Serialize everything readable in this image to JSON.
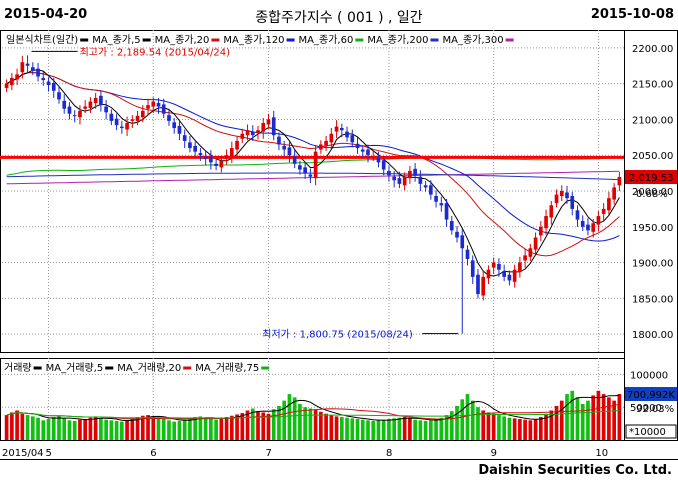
{
  "header": {
    "date_start": "2015-04-20",
    "title": "종합주가지수 ( 001 ) , 일간",
    "date_end": "2015-10-08"
  },
  "footer": {
    "company": "Daishin Securities Co. Ltd."
  },
  "colors": {
    "up": "#e00000",
    "down": "#1c2ad0",
    "ma5": "#000000",
    "ma20": "#d01010",
    "ma120": "#0b1bd0",
    "ma60": "#10b010",
    "ma200": "#2030c0",
    "ma300": "#b020b0",
    "resistance": "#ff0000",
    "vol_up": "#e00000",
    "vol_down": "#10c010"
  },
  "chart_data": [
    {
      "type": "candlestick",
      "name": "price",
      "legend": [
        {
          "label": "일본식차트(일간)",
          "color": "#000000"
        },
        {
          "label": "MA_종가,5",
          "color": "#000000"
        },
        {
          "label": "MA_종가,20",
          "color": "#d01010"
        },
        {
          "label": "MA_종가,120",
          "color": "#0b1bd0"
        },
        {
          "label": "MA_종가,60",
          "color": "#10b010"
        },
        {
          "label": "MA_종가,200",
          "color": "#2030c0"
        },
        {
          "label": "MA_종가,300",
          "color": "#b020b0"
        }
      ],
      "ylim": [
        1775,
        2225
      ],
      "yticks": [
        1800,
        1850,
        1900,
        1950,
        2000,
        2050,
        2100,
        2150,
        2200
      ],
      "xlabels": [
        {
          "label": "2015/04",
          "index": 0
        },
        {
          "label": "5",
          "index": 8
        },
        {
          "label": "6",
          "index": 28
        },
        {
          "label": "7",
          "index": 50
        },
        {
          "label": "8",
          "index": 73
        },
        {
          "label": "9",
          "index": 93
        },
        {
          "label": "10",
          "index": 113
        }
      ],
      "annotations": {
        "high_label": "최고가 : 2,189.54 (2015/04/24)",
        "high_value": 2189.54,
        "high_index": 4,
        "low_label": "최저가 : 1,800.75 (2015/08/24)",
        "low_value": 1800.75,
        "low_index": 87,
        "last_price_label": "2,019.53",
        "last_price": 2019.53,
        "change_label": "0.68%",
        "resistance_level": 2047
      },
      "closes": [
        2150,
        2158,
        2163,
        2180,
        2175,
        2168,
        2160,
        2155,
        2148,
        2140,
        2128,
        2115,
        2108,
        2105,
        2112,
        2118,
        2125,
        2130,
        2120,
        2110,
        2098,
        2092,
        2088,
        2095,
        2100,
        2105,
        2112,
        2120,
        2125,
        2118,
        2108,
        2098,
        2088,
        2080,
        2070,
        2060,
        2055,
        2050,
        2045,
        2040,
        2035,
        2042,
        2050,
        2060,
        2070,
        2080,
        2085,
        2078,
        2085,
        2095,
        2100,
        2078,
        2065,
        2058,
        2050,
        2038,
        2030,
        2025,
        2020,
        2055,
        2065,
        2070,
        2080,
        2090,
        2085,
        2075,
        2068,
        2060,
        2055,
        2050,
        2048,
        2040,
        2030,
        2022,
        2015,
        2010,
        2020,
        2028,
        2022,
        2010,
        2005,
        1995,
        1985,
        1980,
        1960,
        1945,
        1935,
        1920,
        1905,
        1880,
        1856,
        1880,
        1890,
        1900,
        1890,
        1880,
        1875,
        1890,
        1900,
        1910,
        1920,
        1935,
        1950,
        1965,
        1980,
        1995,
        2000,
        1990,
        1975,
        1960,
        1950,
        1945,
        1955,
        1965,
        1975,
        1990,
        2005,
        2019.53
      ],
      "ma_lines": {
        "ma5_color": "#000000",
        "ma20_color": "#d01010",
        "ma60_color": "#10b010",
        "ma120_color": "#0b1bd0",
        "ma200_color": "#2030c0",
        "ma300_color": "#b020b0"
      }
    },
    {
      "type": "bar",
      "name": "volume",
      "legend": [
        {
          "label": "거래량",
          "color": "#000000"
        },
        {
          "label": "MA_거래량,5",
          "color": "#000000"
        },
        {
          "label": "MA_거래량,20",
          "color": "#d01010"
        },
        {
          "label": "MA_거래량,75",
          "color": "#10b010"
        }
      ],
      "ylim": [
        0,
        125000
      ],
      "yticks": [
        50000,
        100000
      ],
      "last_value_label": "700,992K",
      "pct_label": "92.03%",
      "unit_label": "*10000",
      "values": [
        38000,
        42000,
        45000,
        40000,
        38000,
        36000,
        34000,
        30000,
        32000,
        35000,
        37000,
        33000,
        30000,
        29000,
        31000,
        32000,
        34000,
        36000,
        33000,
        31000,
        30000,
        29000,
        28000,
        30000,
        33000,
        35000,
        37000,
        38000,
        36000,
        34000,
        32000,
        30000,
        28000,
        29000,
        31000,
        33000,
        35000,
        36000,
        34000,
        32000,
        31000,
        33000,
        35000,
        37000,
        39000,
        41000,
        45000,
        48000,
        44000,
        42000,
        40000,
        47000,
        52000,
        60000,
        70000,
        65000,
        55000,
        50000,
        48000,
        46000,
        43000,
        40000,
        38000,
        36000,
        35000,
        34000,
        33000,
        32000,
        31000,
        30000,
        29000,
        30000,
        31000,
        32000,
        33000,
        34000,
        35000,
        33000,
        31000,
        30000,
        29000,
        30000,
        32000,
        34000,
        38000,
        44000,
        52000,
        62000,
        70000,
        60000,
        50000,
        45000,
        42000,
        40000,
        38000,
        36000,
        34000,
        33000,
        32000,
        31000,
        30000,
        32000,
        35000,
        40000,
        45000,
        52000,
        60000,
        70000,
        75000,
        65000,
        55000,
        60000,
        68000,
        75000,
        70000,
        65000,
        60000,
        70099
      ]
    }
  ]
}
